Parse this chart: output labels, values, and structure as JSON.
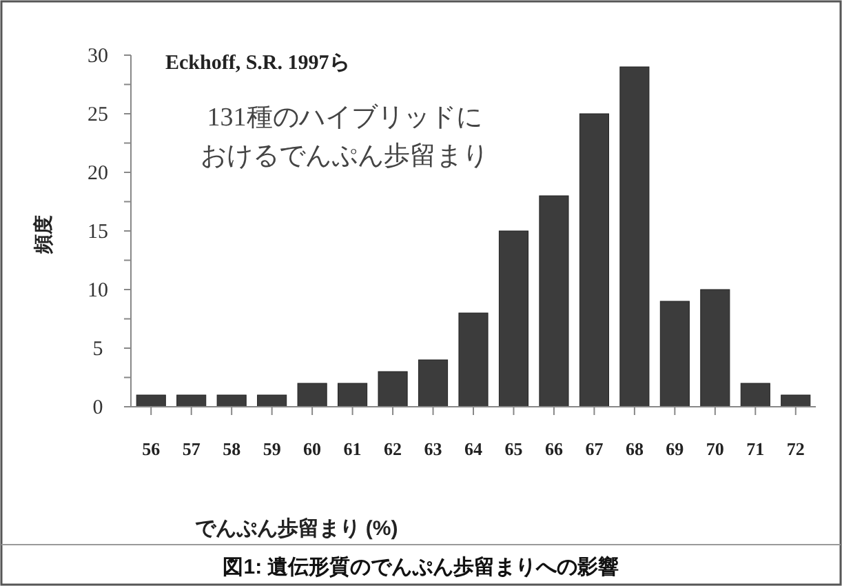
{
  "chart_data": {
    "type": "bar",
    "title": "図1: 遺伝形質のでんぷん歩留まりへの影響",
    "xlabel": "でんぷん歩留まり (%)",
    "ylabel": "頻度",
    "annotations": [
      "Eckhoff, S.R. 1997ら",
      "131種のハイブリッドに",
      "おけるでんぷん歩留まり"
    ],
    "categories": [
      "56",
      "57",
      "58",
      "59",
      "60",
      "61",
      "62",
      "63",
      "64",
      "65",
      "66",
      "67",
      "68",
      "69",
      "70",
      "71",
      "72"
    ],
    "values": [
      1,
      1,
      1,
      1,
      2,
      2,
      3,
      4,
      8,
      15,
      18,
      25,
      29,
      9,
      10,
      2,
      1
    ],
    "color": "#3c3c3c",
    "ylim": [
      0,
      30
    ],
    "yticks": [
      0,
      {
        "value": 2.5,
        "label": null
      },
      5,
      {
        "value": 7.5,
        "label": null
      },
      10,
      {
        "value": 12.5,
        "label": null
      },
      15,
      {
        "value": 17.5,
        "label": null
      },
      20,
      {
        "value": 22.5,
        "label": null
      },
      25,
      {
        "value": 27.5,
        "label": null
      },
      30
    ],
    "grid": false
  }
}
